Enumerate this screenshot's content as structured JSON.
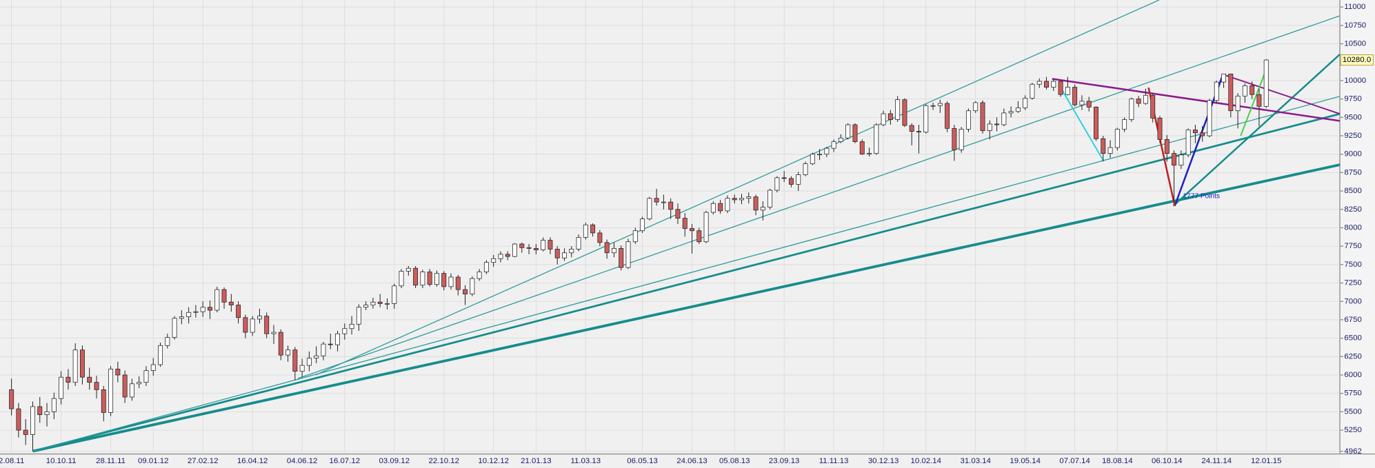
{
  "chart_data": {
    "type": "candlestick",
    "categories": [
      "2.08.11",
      null,
      null,
      null,
      null,
      null,
      null,
      "10.10.11",
      null,
      null,
      null,
      null,
      null,
      null,
      "28.11.11",
      null,
      null,
      null,
      null,
      null,
      "09.01.12",
      null,
      null,
      null,
      null,
      null,
      null,
      "27.02.12",
      null,
      null,
      null,
      null,
      null,
      null,
      "16.04.12",
      null,
      null,
      null,
      null,
      null,
      null,
      "04.06.12",
      null,
      null,
      null,
      null,
      null,
      "16.07.12",
      null,
      null,
      null,
      null,
      null,
      null,
      "03.09.12",
      null,
      null,
      null,
      null,
      null,
      null,
      "22.10.12",
      null,
      null,
      null,
      null,
      null,
      null,
      "10.12.12",
      null,
      null,
      null,
      null,
      null,
      "21.01.13",
      null,
      null,
      null,
      null,
      null,
      null,
      "11.03.13",
      null,
      null,
      null,
      null,
      null,
      null,
      null,
      "06.05.13",
      null,
      null,
      null,
      null,
      null,
      null,
      "24.06.13",
      null,
      null,
      null,
      null,
      null,
      "05.08.13",
      null,
      null,
      null,
      null,
      null,
      null,
      "23.09.13",
      null,
      null,
      null,
      null,
      null,
      null,
      "11.11.13",
      null,
      null,
      null,
      null,
      null,
      null,
      "30.12.13",
      null,
      null,
      null,
      null,
      null,
      "10.02.14",
      null,
      null,
      null,
      null,
      null,
      null,
      "31.03.14",
      null,
      null,
      null,
      null,
      null,
      null,
      "19.05.14",
      null,
      null,
      null,
      null,
      null,
      null,
      "07.07.14",
      null,
      null,
      null,
      null,
      null,
      "18.08.14",
      null,
      null,
      null,
      null,
      null,
      null,
      "06.10.14",
      null,
      null,
      null,
      null,
      null,
      null,
      "24.11.14",
      null,
      null,
      null,
      null,
      null,
      null,
      "12.01.15"
    ],
    "open": [
      5800,
      5540,
      5250,
      5190,
      5570,
      5460,
      5500,
      5680,
      5970,
      5900,
      6340,
      5970,
      5900,
      5800,
      5490,
      6080,
      6000,
      5700,
      5880,
      5900,
      6060,
      6140,
      6400,
      6510,
      6770,
      6790,
      6850,
      6860,
      6920,
      6880,
      7160,
      6990,
      6950,
      6780,
      6580,
      6760,
      6800,
      6560,
      6580,
      6270,
      6340,
      6050,
      6130,
      6230,
      6260,
      6420,
      6410,
      6560,
      6630,
      6690,
      6920,
      6950,
      6990,
      6970,
      6970,
      7210,
      7410,
      7450,
      7220,
      7400,
      7230,
      7380,
      7200,
      7330,
      7160,
      7100,
      7310,
      7400,
      7530,
      7580,
      7640,
      7610,
      7780,
      7730,
      7720,
      7700,
      7830,
      7710,
      7590,
      7660,
      7710,
      7870,
      8040,
      7930,
      7800,
      7660,
      7720,
      7460,
      7810,
      7960,
      8120,
      8400,
      8350,
      8350,
      8250,
      8130,
      7990,
      7960,
      7810,
      8210,
      8330,
      8230,
      8400,
      8380,
      8400,
      8420,
      8240,
      8280,
      8510,
      8680,
      8670,
      8590,
      8720,
      8870,
      9000,
      9000,
      9080,
      9170,
      9220,
      9400,
      9170,
      9000,
      9010,
      9400,
      9550,
      9470,
      9740,
      9390,
      9310,
      9300,
      9660,
      9660,
      9690,
      9350,
      9060,
      9340,
      9590,
      9700,
      9320,
      9410,
      9400,
      9560,
      9580,
      9630,
      9760,
      9950,
      9990,
      9910,
      9990,
      9810,
      9910,
      9670,
      9720,
      9640,
      9210,
      9010,
      9090,
      9340,
      9470,
      9750,
      9690,
      9800,
      9490,
      9200,
      9010,
      8850,
      8990,
      9330,
      9290,
      9250,
      9730,
      9980,
      10090,
      9590,
      9790,
      9930,
      9810,
      9650
    ],
    "high": [
      5950,
      5620,
      5400,
      5640,
      5700,
      5620,
      5760,
      6050,
      6080,
      6430,
      6400,
      6100,
      5990,
      5850,
      6120,
      6180,
      6060,
      5950,
      5980,
      6120,
      6230,
      6440,
      6560,
      6800,
      6880,
      6920,
      6950,
      7000,
      7010,
      7200,
      7190,
      7100,
      7000,
      6820,
      6800,
      6900,
      6850,
      6680,
      6620,
      6400,
      6380,
      6220,
      6320,
      6390,
      6450,
      6560,
      6600,
      6700,
      6800,
      6960,
      7000,
      7050,
      7100,
      7040,
      7240,
      7440,
      7480,
      7480,
      7430,
      7440,
      7420,
      7410,
      7380,
      7360,
      7220,
      7340,
      7440,
      7560,
      7630,
      7680,
      7680,
      7790,
      7800,
      7780,
      7780,
      7870,
      7870,
      7750,
      7720,
      7750,
      7910,
      8070,
      8060,
      7970,
      7840,
      7800,
      7760,
      7850,
      8000,
      8150,
      8420,
      8530,
      8450,
      8400,
      8330,
      8200,
      8050,
      8000,
      8230,
      8360,
      8380,
      8440,
      8450,
      8460,
      8480,
      8450,
      8360,
      8530,
      8700,
      8770,
      8700,
      8760,
      8900,
      9020,
      9070,
      9100,
      9200,
      9270,
      9420,
      9420,
      9200,
      9090,
      9420,
      9590,
      9600,
      9790,
      9760,
      9420,
      9400,
      9680,
      9700,
      9740,
      9720,
      9400,
      9370,
      9620,
      9720,
      9730,
      9460,
      9500,
      9620,
      9650,
      9720,
      9800,
      9970,
      10030,
      10050,
      10020,
      10000,
      10050,
      9950,
      9800,
      9780,
      9650,
      9250,
      9190,
      9360,
      9500,
      9770,
      9790,
      9890,
      9820,
      9520,
      9260,
      9050,
      9050,
      9350,
      9400,
      9380,
      9750,
      10000,
      10090,
      10093,
      9830,
      9960,
      9990,
      9890,
      10290
    ],
    "low": [
      5450,
      5150,
      5050,
      4965,
      5350,
      5300,
      5400,
      5600,
      5800,
      5850,
      5870,
      5800,
      5680,
      5370,
      5440,
      5900,
      5620,
      5650,
      5820,
      5850,
      5990,
      6110,
      6360,
      6480,
      6690,
      6700,
      6780,
      6790,
      6760,
      6850,
      6900,
      6860,
      6700,
      6500,
      6530,
      6700,
      6500,
      6420,
      6200,
      6180,
      5930,
      5970,
      6050,
      6160,
      6200,
      6350,
      6320,
      6480,
      6550,
      6600,
      6880,
      6900,
      6920,
      6890,
      6900,
      7180,
      7350,
      7180,
      7180,
      7200,
      7200,
      7150,
      7160,
      7080,
      6950,
      7070,
      7280,
      7370,
      7470,
      7530,
      7560,
      7600,
      7660,
      7640,
      7640,
      7680,
      7640,
      7500,
      7550,
      7600,
      7680,
      7840,
      7880,
      7750,
      7580,
      7600,
      7420,
      7440,
      7780,
      7930,
      8100,
      8300,
      8250,
      8120,
      8050,
      7880,
      7650,
      7780,
      7790,
      8180,
      8190,
      8200,
      8330,
      8320,
      8330,
      8170,
      8100,
      8250,
      8480,
      8620,
      8550,
      8500,
      8700,
      8850,
      8920,
      8960,
      9030,
      9150,
      9200,
      9150,
      8990,
      8970,
      8990,
      9380,
      9400,
      9440,
      9370,
      9120,
      9010,
      9280,
      9600,
      9560,
      9300,
      8910,
      9020,
      9300,
      9560,
      9280,
      9200,
      9310,
      9380,
      9500,
      9560,
      9600,
      9740,
      9900,
      9880,
      9860,
      9780,
      9800,
      9650,
      9600,
      9580,
      9180,
      8900,
      8950,
      9050,
      9300,
      9440,
      9640,
      9670,
      9430,
      9150,
      8900,
      8355,
      8800,
      8960,
      9150,
      9170,
      9230,
      9700,
      9900,
      9500,
      9350,
      9700,
      9750,
      9380,
      9630
    ],
    "close": [
      5540,
      5250,
      5190,
      5570,
      5460,
      5500,
      5680,
      5970,
      5900,
      6340,
      5970,
      5900,
      5800,
      5490,
      6080,
      6000,
      5700,
      5880,
      5900,
      6060,
      6140,
      6400,
      6510,
      6770,
      6790,
      6850,
      6860,
      6920,
      6880,
      7160,
      6990,
      6950,
      6780,
      6580,
      6760,
      6800,
      6560,
      6580,
      6270,
      6340,
      6050,
      6130,
      6230,
      6260,
      6420,
      6410,
      6560,
      6630,
      6690,
      6920,
      6950,
      6990,
      6970,
      6970,
      7210,
      7410,
      7450,
      7220,
      7400,
      7230,
      7380,
      7200,
      7330,
      7160,
      7100,
      7310,
      7400,
      7530,
      7580,
      7640,
      7610,
      7780,
      7730,
      7720,
      7700,
      7830,
      7710,
      7590,
      7660,
      7710,
      7870,
      8040,
      7930,
      7800,
      7660,
      7720,
      7460,
      7810,
      7960,
      8120,
      8400,
      8350,
      8350,
      8250,
      8130,
      7990,
      7960,
      7810,
      8210,
      8330,
      8230,
      8400,
      8380,
      8400,
      8420,
      8240,
      8280,
      8510,
      8680,
      8670,
      8590,
      8720,
      8870,
      9000,
      9000,
      9080,
      9170,
      9220,
      9400,
      9170,
      9000,
      9010,
      9400,
      9550,
      9470,
      9740,
      9390,
      9310,
      9300,
      9660,
      9660,
      9690,
      9350,
      9060,
      9340,
      9590,
      9700,
      9320,
      9410,
      9400,
      9560,
      9580,
      9630,
      9760,
      9950,
      9990,
      9910,
      9990,
      9810,
      9910,
      9670,
      9720,
      9640,
      9210,
      9010,
      9090,
      9340,
      9470,
      9750,
      9690,
      9800,
      9490,
      9200,
      9010,
      8850,
      8990,
      9330,
      9290,
      9250,
      9730,
      9980,
      10090,
      9590,
      9790,
      9930,
      9810,
      9650,
      10280
    ],
    "last_price_label": "10280.0",
    "up_color": "#ffffff",
    "down_color": "#cd5c5c",
    "ylim": [
      4962,
      11095
    ],
    "yticks": [
      4962,
      5250,
      5500,
      5750,
      6000,
      6250,
      6500,
      6750,
      7000,
      7250,
      7500,
      7750,
      8000,
      8250,
      8500,
      8750,
      9000,
      9250,
      9500,
      9750,
      10000,
      10250,
      10500,
      10750,
      11000
    ],
    "grid": true,
    "annotation": "1777 Points",
    "trendlines": [
      {
        "color": "#168c8c",
        "width": 3,
        "points": [
          [
            3,
            4964
          ],
          [
            187.4,
            8857
          ]
        ]
      },
      {
        "color": "#168c8c",
        "width": 2.2,
        "points": [
          [
            3,
            4964
          ],
          [
            187.4,
            9548
          ]
        ]
      },
      {
        "color": "#2a9a9a",
        "width": 1,
        "points": [
          [
            3,
            4964
          ],
          [
            187.4,
            9786
          ]
        ]
      },
      {
        "color": "#2a9a9a",
        "width": 1,
        "points": [
          [
            40.4,
            5952
          ],
          [
            187.4,
            10881
          ]
        ]
      },
      {
        "color": "#2a9a9a",
        "width": 1,
        "points": [
          [
            42.9,
            6000
          ],
          [
            161.9,
            11095
          ]
        ]
      },
      {
        "color": "#168c8c",
        "width": 2,
        "points": [
          [
            163.9,
            8298
          ],
          [
            187.4,
            10357
          ]
        ]
      },
      {
        "color": "#8b1a8b",
        "width": 2,
        "points": [
          [
            146.8,
            10024
          ],
          [
            187.4,
            9452
          ]
        ]
      },
      {
        "color": "#8b1a8b",
        "width": 1.5,
        "points": [
          [
            170.9,
            10083
          ],
          [
            187.4,
            9548
          ]
        ]
      },
      {
        "color": "#2020c0",
        "width": 2,
        "points": [
          [
            164.1,
            8298
          ],
          [
            170.9,
            10083
          ]
        ]
      },
      {
        "color": "#c02020",
        "width": 2,
        "points": [
          [
            160.4,
            9905
          ],
          [
            164.1,
            8298
          ]
        ]
      },
      {
        "color": "#20d0e0",
        "width": 1.5,
        "points": [
          [
            148,
            9905
          ],
          [
            154,
            8917
          ]
        ]
      },
      {
        "color": "#40d040",
        "width": 1.5,
        "points": [
          [
            173.4,
            9250
          ],
          [
            177.2,
            10202
          ]
        ]
      }
    ]
  }
}
